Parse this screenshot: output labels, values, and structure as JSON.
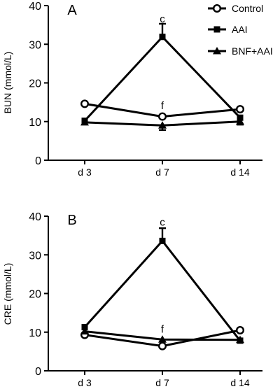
{
  "chart_data": [
    {
      "type": "line",
      "panel_label": "A",
      "ylabel": "BUN (mmol/L)",
      "xlabel": "",
      "categories": [
        "d 3",
        "d 7",
        "d 14"
      ],
      "ylim": [
        0,
        40
      ],
      "yticks": [
        "0",
        "10",
        "20",
        "30",
        "40"
      ],
      "legend_position": "top-right",
      "series": [
        {
          "name": "Control",
          "marker": "circle-open",
          "values": [
            14.6,
            11.3,
            13.2
          ],
          "errors": [
            0,
            0,
            0
          ]
        },
        {
          "name": "AAI",
          "marker": "square-filled",
          "values": [
            10.2,
            31.9,
            11.0
          ],
          "errors": [
            0,
            3.4,
            0
          ]
        },
        {
          "name": "BNF+AAI",
          "marker": "triangle-filled",
          "values": [
            9.8,
            9.0,
            10.0
          ],
          "errors": [
            0,
            1.2,
            0.8
          ]
        }
      ],
      "annotations": [
        {
          "text": "c",
          "category": "d 7",
          "y": 35.7
        },
        {
          "text": "f",
          "category": "d 7",
          "y": 13.2
        }
      ]
    },
    {
      "type": "line",
      "panel_label": "B",
      "ylabel": "CRE (mmol/L)",
      "xlabel": "",
      "categories": [
        "d 3",
        "d 7",
        "d 14"
      ],
      "ylim": [
        0,
        40
      ],
      "yticks": [
        "0",
        "10",
        "20",
        "30",
        "40"
      ],
      "series": [
        {
          "name": "Control",
          "marker": "circle-open",
          "values": [
            9.3,
            6.4,
            10.5
          ],
          "errors": [
            0,
            0,
            0
          ]
        },
        {
          "name": "AAI",
          "marker": "square-filled",
          "values": [
            11.3,
            33.6,
            7.8
          ],
          "errors": [
            0,
            3.3,
            0
          ]
        },
        {
          "name": "BNF+AAI",
          "marker": "triangle-filled",
          "values": [
            10.2,
            8.1,
            8.0
          ],
          "errors": [
            0,
            0,
            0
          ]
        }
      ],
      "annotations": [
        {
          "text": "c",
          "category": "d 7",
          "y": 37.6
        },
        {
          "text": "f",
          "category": "d 7",
          "y": 9.9
        }
      ]
    }
  ]
}
